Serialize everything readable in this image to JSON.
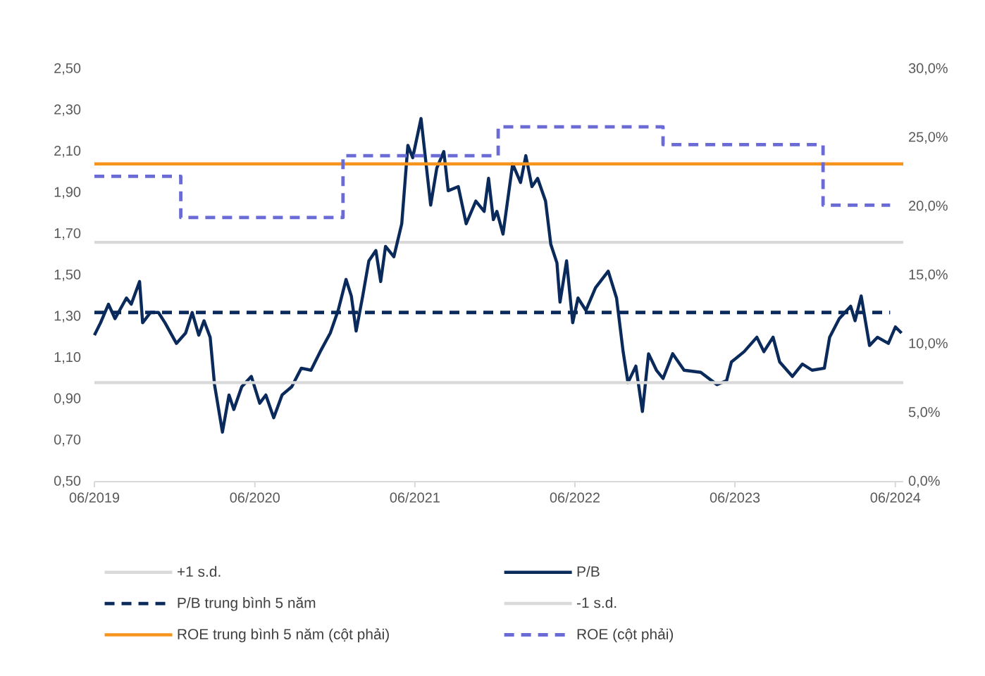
{
  "chart_data": {
    "type": "line",
    "xlim": [
      "2019-06-01",
      "2024-06-19"
    ],
    "xticks": [
      {
        "value": "2019-06-01",
        "label": "06/2019"
      },
      {
        "value": "2020-06-01",
        "label": "06/2020"
      },
      {
        "value": "2021-06-01",
        "label": "06/2021"
      },
      {
        "value": "2022-06-01",
        "label": "06/2022"
      },
      {
        "value": "2023-06-01",
        "label": "06/2023"
      },
      {
        "value": "2024-06-01",
        "label": "06/2024"
      }
    ],
    "ylim": [
      0.5,
      2.5
    ],
    "yticks": [
      {
        "value": 0.5,
        "label": "0,50"
      },
      {
        "value": 0.7,
        "label": "0,70"
      },
      {
        "value": 0.9,
        "label": "0,90"
      },
      {
        "value": 1.1,
        "label": "1,10"
      },
      {
        "value": 1.3,
        "label": "1,30"
      },
      {
        "value": 1.5,
        "label": "1,50"
      },
      {
        "value": 1.7,
        "label": "1,70"
      },
      {
        "value": 1.9,
        "label": "1,90"
      },
      {
        "value": 2.1,
        "label": "2,10"
      },
      {
        "value": 2.3,
        "label": "2,30"
      },
      {
        "value": 2.5,
        "label": "2,50"
      }
    ],
    "y2lim": [
      0,
      30
    ],
    "y2ticks": [
      {
        "value": 0,
        "label": "0,0%"
      },
      {
        "value": 5,
        "label": "5,0%"
      },
      {
        "value": 10,
        "label": "10,0%"
      },
      {
        "value": 15,
        "label": "15,0%"
      },
      {
        "value": 20,
        "label": "20,0%"
      },
      {
        "value": 25,
        "label": "25,0%"
      },
      {
        "value": 30,
        "label": "30,0%"
      }
    ],
    "legend": "bottom",
    "series": [
      {
        "name": "+1 s.d.",
        "color": "#d9d9d9",
        "line_style": "solid",
        "x": [
          "2019-06-01",
          "2024-06-19"
        ],
        "values": [
          1.66,
          1.66
        ]
      },
      {
        "name": "P/B",
        "color": "#0b2a5c",
        "line_style": "solid",
        "x": [
          "2019-06-01",
          "2019-06-15",
          "2019-07-03",
          "2019-07-18",
          "2019-08-13",
          "2019-08-24",
          "2019-09-12",
          "2019-09-19",
          "2019-10-07",
          "2019-10-25",
          "2019-11-09",
          "2019-12-05",
          "2019-12-26",
          "2020-01-10",
          "2020-01-25",
          "2020-02-06",
          "2020-02-20",
          "2020-03-01",
          "2020-03-19",
          "2020-04-03",
          "2020-04-14",
          "2020-05-02",
          "2020-05-24",
          "2020-06-12",
          "2020-06-26",
          "2020-07-14",
          "2020-08-02",
          "2020-08-24",
          "2020-09-15",
          "2020-10-07",
          "2020-10-28",
          "2020-11-20",
          "2020-12-08",
          "2020-12-26",
          "2021-01-07",
          "2021-01-18",
          "2021-02-02",
          "2021-02-16",
          "2021-03-04",
          "2021-03-15",
          "2021-03-26",
          "2021-04-14",
          "2021-05-02",
          "2021-05-16",
          "2021-05-27",
          "2021-06-15",
          "2021-07-07",
          "2021-07-21",
          "2021-08-06",
          "2021-08-16",
          "2021-09-08",
          "2021-09-26",
          "2021-10-18",
          "2021-11-06",
          "2021-11-16",
          "2021-11-27",
          "2021-12-05",
          "2021-12-19",
          "2022-01-10",
          "2022-01-28",
          "2022-02-09",
          "2022-02-23",
          "2022-03-08",
          "2022-03-26",
          "2022-04-07",
          "2022-04-21",
          "2022-04-28",
          "2022-05-13",
          "2022-05-27",
          "2022-06-08",
          "2022-06-26",
          "2022-07-18",
          "2022-08-16",
          "2022-09-04",
          "2022-09-19",
          "2022-09-30",
          "2022-10-18",
          "2022-11-02",
          "2022-11-16",
          "2022-12-04",
          "2022-12-19",
          "2023-01-10",
          "2023-02-05",
          "2023-03-15",
          "2023-04-21",
          "2023-05-13",
          "2023-05-24",
          "2023-06-22",
          "2023-07-21",
          "2023-08-06",
          "2023-08-27",
          "2023-09-11",
          "2023-10-10",
          "2023-11-02",
          "2023-11-24",
          "2023-12-22",
          "2024-01-03",
          "2024-01-25",
          "2024-02-20",
          "2024-03-01",
          "2024-03-15",
          "2024-04-03",
          "2024-04-21",
          "2024-05-16",
          "2024-06-01",
          "2024-06-15"
        ],
        "values": [
          1.21,
          1.27,
          1.36,
          1.29,
          1.39,
          1.36,
          1.47,
          1.27,
          1.32,
          1.32,
          1.27,
          1.17,
          1.22,
          1.32,
          1.21,
          1.28,
          1.2,
          0.97,
          0.74,
          0.92,
          0.85,
          0.96,
          1.01,
          0.88,
          0.92,
          0.81,
          0.92,
          0.96,
          1.05,
          1.04,
          1.13,
          1.22,
          1.33,
          1.48,
          1.4,
          1.23,
          1.4,
          1.57,
          1.62,
          1.47,
          1.64,
          1.59,
          1.75,
          2.13,
          2.07,
          2.26,
          1.84,
          2.02,
          2.1,
          1.91,
          1.93,
          1.75,
          1.86,
          1.81,
          1.97,
          1.77,
          1.81,
          1.7,
          2.04,
          1.95,
          2.08,
          1.93,
          1.97,
          1.86,
          1.65,
          1.56,
          1.37,
          1.57,
          1.27,
          1.39,
          1.33,
          1.44,
          1.52,
          1.39,
          1.13,
          0.98,
          1.06,
          0.84,
          1.12,
          1.04,
          1.0,
          1.12,
          1.04,
          1.03,
          0.97,
          0.99,
          1.08,
          1.13,
          1.2,
          1.13,
          1.2,
          1.08,
          1.01,
          1.07,
          1.04,
          1.05,
          1.2,
          1.29,
          1.35,
          1.28,
          1.4,
          1.16,
          1.2,
          1.17,
          1.25,
          1.22
        ]
      },
      {
        "name": "P/B trung bình 5 năm",
        "color": "#0b2a5c",
        "line_style": "dashed",
        "x": [
          "2019-06-01",
          "2024-05-20"
        ],
        "values": [
          1.32,
          1.32
        ]
      },
      {
        "name": "-1 s.d.",
        "color": "#d9d9d9",
        "line_style": "solid",
        "x": [
          "2019-06-01",
          "2024-06-19"
        ],
        "values": [
          0.98,
          0.98
        ]
      },
      {
        "name": "ROE trung bình 5 năm (cột phải)",
        "color": "#f7941d",
        "line_style": "solid",
        "axis": "y2",
        "x": [
          "2019-06-01",
          "2024-06-19"
        ],
        "values": [
          23.1,
          23.1
        ]
      },
      {
        "name": "ROE (cột phải)",
        "color": "#6b6bd6",
        "line_style": "dashed",
        "type": "step",
        "axis": "y2",
        "x": [
          "2019-06-01",
          "2019-12-15",
          "2020-12-19",
          "2021-12-08",
          "2022-12-19",
          "2023-12-19",
          "2024-05-20"
        ],
        "values": [
          22.2,
          19.2,
          23.7,
          25.8,
          24.5,
          20.1,
          20.1
        ]
      }
    ]
  }
}
